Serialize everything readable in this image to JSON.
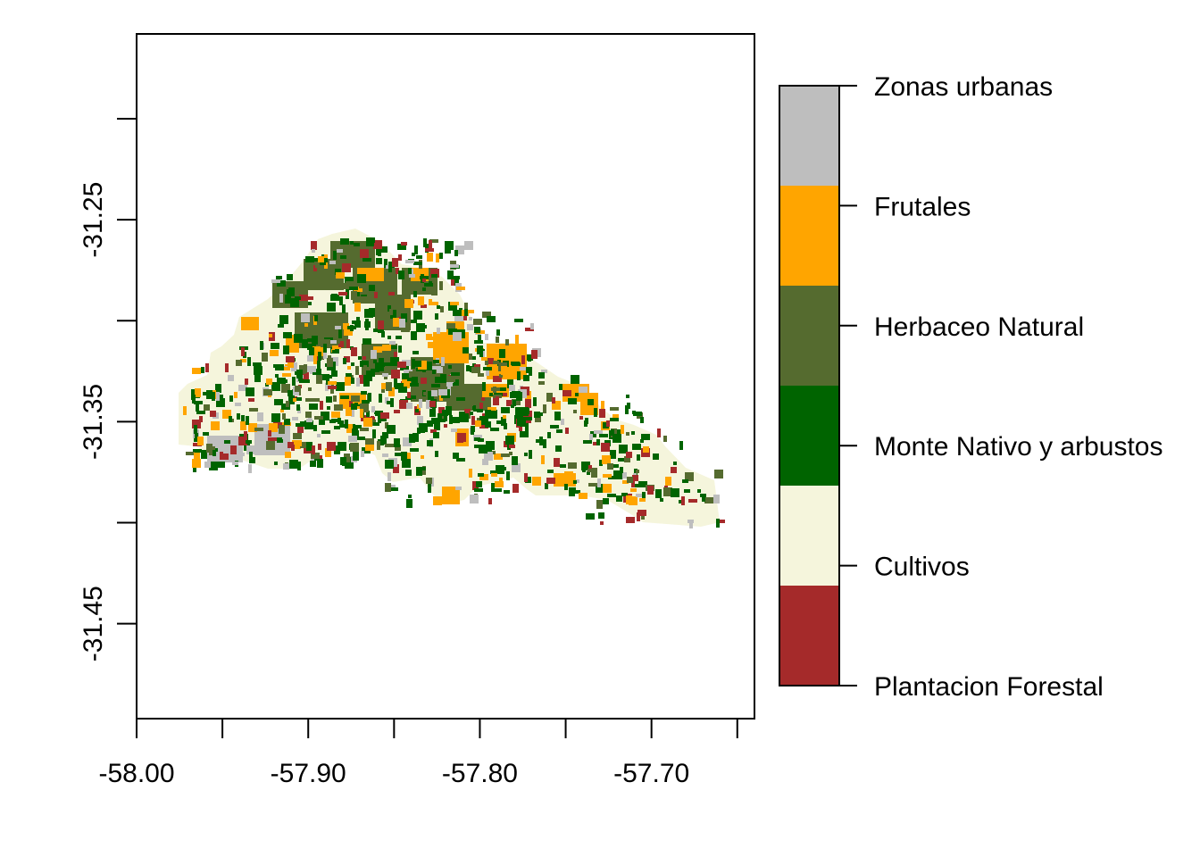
{
  "map": {
    "x_axis": {
      "ticks": [
        -58.0,
        -57.95,
        -57.9,
        -57.85,
        -57.8,
        -57.75,
        -57.7,
        -57.65
      ],
      "labels": [
        {
          "value": -58.0,
          "text": "-58.00"
        },
        {
          "value": -57.9,
          "text": "-57.90"
        },
        {
          "value": -57.8,
          "text": "-57.80"
        },
        {
          "value": -57.7,
          "text": "-57.70"
        }
      ],
      "range": [
        -58.0,
        -57.64
      ]
    },
    "y_axis": {
      "ticks": [
        -31.2,
        -31.25,
        -31.3,
        -31.35,
        -31.4,
        -31.45
      ],
      "labels": [
        {
          "value": -31.25,
          "text": "-31.25"
        },
        {
          "value": -31.35,
          "text": "-31.35"
        },
        {
          "value": -31.45,
          "text": "-31.45"
        }
      ],
      "range": [
        -31.497,
        -31.158
      ]
    },
    "colors": {
      "plantacion": "#A52A2A",
      "cultivos": "#F5F5DC",
      "monte": "#006400",
      "herbaceo": "#556B2F",
      "frutales": "#FFA500",
      "urbanas": "#BEBEBE"
    }
  },
  "legend": {
    "items": [
      {
        "label": "Zonas urbanas",
        "color": "#BEBEBE"
      },
      {
        "label": "Frutales",
        "color": "#FFA500"
      },
      {
        "label": "Herbaceo Natural",
        "color": "#556B2F"
      },
      {
        "label": "Monte Nativo y arbustos",
        "color": "#006400"
      },
      {
        "label": "Cultivos",
        "color": "#F5F5DC"
      },
      {
        "label": "Plantacion Forestal",
        "color": "#A52A2A"
      }
    ]
  }
}
